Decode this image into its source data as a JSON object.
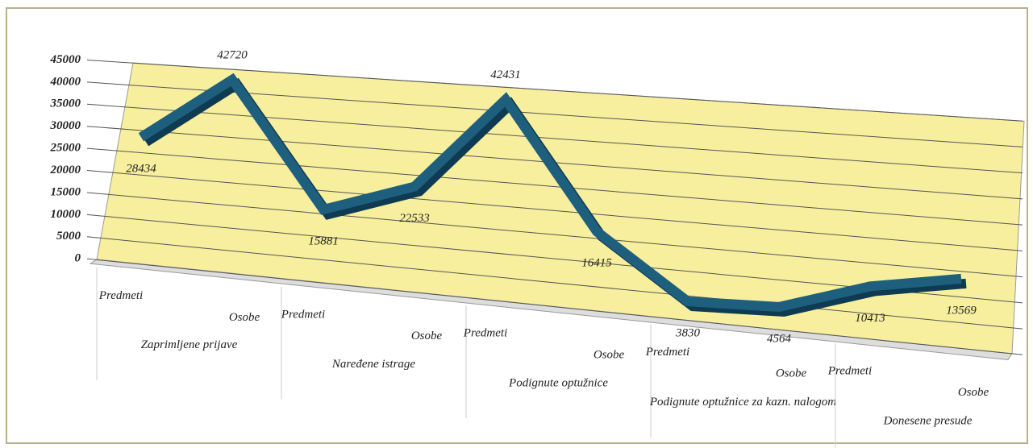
{
  "chart_data": {
    "type": "line",
    "categories": [
      "Predmeti",
      "Osobe",
      "Predmeti",
      "Osobe",
      "Predmeti",
      "Osobe",
      "Predmeti",
      "Osobe",
      "Predmeti",
      "Osobe"
    ],
    "groups": [
      "Zaprimljene prijave",
      "Naređene istrage",
      "Podignute optužnice",
      "Podignute optužnice za kazn. nalogom",
      "Donesene presude"
    ],
    "values": [
      28434,
      42720,
      15881,
      22533,
      42431,
      16415,
      3830,
      4564,
      10413,
      13569
    ],
    "color": "#1f5f7e",
    "ylim": [
      0,
      45000
    ],
    "yticks": [
      0,
      5000,
      10000,
      15000,
      20000,
      25000,
      30000,
      35000,
      40000,
      45000
    ],
    "grid": true
  }
}
